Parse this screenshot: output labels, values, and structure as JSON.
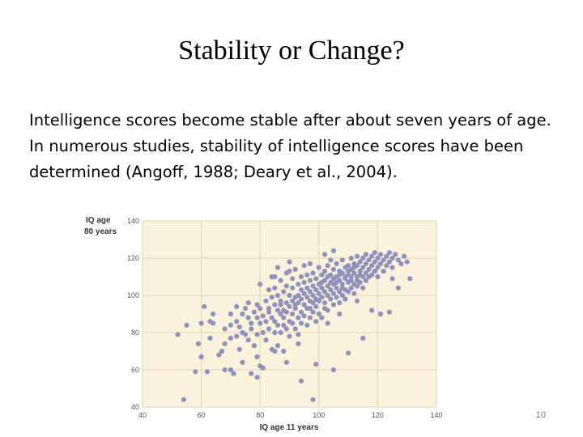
{
  "slide": {
    "title": "Stability or Change?",
    "body": "Intelligence scores become stable after about seven years of age. In numerous studies, stability of intelligence scores have been determined (Angoff, 1988; Deary et al., 2004).",
    "page_number": "10"
  },
  "colors": {
    "plot_background": "#fbf2dc",
    "grid": "#e0d3b5",
    "points": "#8f92bd",
    "axis_text": "#555555"
  },
  "chart_data": {
    "type": "scatter",
    "title": "",
    "xlabel": "IQ age 11 years",
    "ylabel_lines": [
      "IQ age",
      "80 years"
    ],
    "xlim": [
      40,
      140
    ],
    "ylim": [
      40,
      140
    ],
    "xticks": [
      40,
      60,
      80,
      100,
      120,
      140
    ],
    "yticks": [
      40,
      60,
      80,
      100,
      120,
      140
    ],
    "grid": true,
    "legend": "none",
    "points": [
      [
        52,
        79
      ],
      [
        54,
        44
      ],
      [
        55,
        84
      ],
      [
        58,
        59
      ],
      [
        59,
        74
      ],
      [
        60,
        85
      ],
      [
        60,
        67
      ],
      [
        61,
        94
      ],
      [
        62,
        59
      ],
      [
        63,
        77
      ],
      [
        63,
        86
      ],
      [
        64,
        85
      ],
      [
        64,
        90
      ],
      [
        66,
        68
      ],
      [
        67,
        70
      ],
      [
        68,
        74
      ],
      [
        68,
        82
      ],
      [
        68,
        60
      ],
      [
        70,
        77
      ],
      [
        70,
        84
      ],
      [
        70,
        90
      ],
      [
        70,
        60
      ],
      [
        71,
        58
      ],
      [
        72,
        78
      ],
      [
        72,
        86
      ],
      [
        72,
        94
      ],
      [
        73,
        83
      ],
      [
        73,
        71
      ],
      [
        74,
        90
      ],
      [
        74,
        80
      ],
      [
        74,
        64
      ],
      [
        75,
        93
      ],
      [
        76,
        88
      ],
      [
        76,
        76
      ],
      [
        76,
        96
      ],
      [
        77,
        82
      ],
      [
        77,
        85
      ],
      [
        78,
        91
      ],
      [
        78,
        73
      ],
      [
        79,
        79
      ],
      [
        79,
        88
      ],
      [
        79,
        95
      ],
      [
        79,
        67
      ],
      [
        80,
        62
      ],
      [
        80,
        85
      ],
      [
        80,
        93
      ],
      [
        80,
        106
      ],
      [
        81,
        80
      ],
      [
        81,
        89
      ],
      [
        82,
        86
      ],
      [
        82,
        97
      ],
      [
        82,
        76
      ],
      [
        83,
        103
      ],
      [
        83,
        82
      ],
      [
        83,
        91
      ],
      [
        84,
        88
      ],
      [
        84,
        99
      ],
      [
        84,
        71
      ],
      [
        84,
        110
      ],
      [
        85,
        95
      ],
      [
        85,
        80
      ],
      [
        85,
        104
      ],
      [
        85,
        86
      ],
      [
        86,
        92
      ],
      [
        86,
        84
      ],
      [
        86,
        100
      ],
      [
        86,
        115
      ],
      [
        86,
        73
      ],
      [
        87,
        90
      ],
      [
        87,
        97
      ],
      [
        87,
        80
      ],
      [
        87,
        108
      ],
      [
        87,
        95
      ],
      [
        88,
        88
      ],
      [
        88,
        102
      ],
      [
        88,
        92
      ],
      [
        88,
        70
      ],
      [
        88,
        84
      ],
      [
        89,
        96
      ],
      [
        89,
        105
      ],
      [
        89,
        82
      ],
      [
        89,
        112
      ],
      [
        89,
        91
      ],
      [
        90,
        94
      ],
      [
        90,
        100
      ],
      [
        90,
        86
      ],
      [
        90,
        118
      ],
      [
        90,
        78
      ],
      [
        91,
        97
      ],
      [
        91,
        90
      ],
      [
        91,
        104
      ],
      [
        91,
        85
      ],
      [
        91,
        109
      ],
      [
        92,
        93
      ],
      [
        92,
        99
      ],
      [
        92,
        82
      ],
      [
        92,
        114
      ],
      [
        92,
        95
      ],
      [
        93,
        100
      ],
      [
        93,
        88
      ],
      [
        93,
        106
      ],
      [
        93,
        79
      ],
      [
        93,
        96
      ],
      [
        94,
        103
      ],
      [
        94,
        91
      ],
      [
        94,
        110
      ],
      [
        94,
        85
      ],
      [
        94,
        98
      ],
      [
        95,
        95
      ],
      [
        95,
        107
      ],
      [
        95,
        89
      ],
      [
        95,
        101
      ],
      [
        95,
        116
      ],
      [
        96,
        93
      ],
      [
        96,
        99
      ],
      [
        96,
        84
      ],
      [
        96,
        111
      ],
      [
        96,
        104
      ],
      [
        97,
        97
      ],
      [
        97,
        108
      ],
      [
        97,
        88
      ],
      [
        97,
        102
      ],
      [
        97,
        93
      ],
      [
        98,
        100
      ],
      [
        98,
        105
      ],
      [
        98,
        91
      ],
      [
        98,
        112
      ],
      [
        98,
        96
      ],
      [
        99,
        103
      ],
      [
        99,
        98
      ],
      [
        99,
        86
      ],
      [
        99,
        109
      ],
      [
        99,
        94
      ],
      [
        100,
        101
      ],
      [
        100,
        106
      ],
      [
        100,
        90
      ],
      [
        100,
        115
      ],
      [
        100,
        97
      ],
      [
        101,
        104
      ],
      [
        101,
        99
      ],
      [
        101,
        111
      ],
      [
        101,
        88
      ],
      [
        101,
        107
      ],
      [
        102,
        102
      ],
      [
        102,
        96
      ],
      [
        102,
        113
      ],
      [
        102,
        93
      ],
      [
        102,
        108
      ],
      [
        103,
        105
      ],
      [
        103,
        100
      ],
      [
        103,
        116
      ],
      [
        103,
        92
      ],
      [
        103,
        110
      ],
      [
        104,
        103
      ],
      [
        104,
        107
      ],
      [
        104,
        98
      ],
      [
        104,
        119
      ],
      [
        104,
        111
      ],
      [
        105,
        106
      ],
      [
        105,
        101
      ],
      [
        105,
        114
      ],
      [
        105,
        95
      ],
      [
        105,
        109
      ],
      [
        106,
        104
      ],
      [
        106,
        110
      ],
      [
        106,
        99
      ],
      [
        106,
        117
      ],
      [
        106,
        107
      ],
      [
        107,
        108
      ],
      [
        107,
        102
      ],
      [
        107,
        113
      ],
      [
        107,
        96
      ],
      [
        107,
        111
      ],
      [
        108,
        106
      ],
      [
        108,
        112
      ],
      [
        108,
        100
      ],
      [
        108,
        119
      ],
      [
        108,
        104
      ],
      [
        109,
        109
      ],
      [
        109,
        115
      ],
      [
        109,
        103
      ],
      [
        109,
        110
      ],
      [
        109,
        98
      ],
      [
        110,
        111
      ],
      [
        110,
        107
      ],
      [
        110,
        116
      ],
      [
        110,
        102
      ],
      [
        110,
        113
      ],
      [
        111,
        108
      ],
      [
        111,
        114
      ],
      [
        111,
        104
      ],
      [
        111,
        120
      ],
      [
        111,
        110
      ],
      [
        112,
        112
      ],
      [
        112,
        106
      ],
      [
        112,
        117
      ],
      [
        112,
        101
      ],
      [
        112,
        115
      ],
      [
        113,
        110
      ],
      [
        113,
        116
      ],
      [
        113,
        105
      ],
      [
        113,
        121
      ],
      [
        113,
        108
      ],
      [
        114,
        113
      ],
      [
        114,
        118
      ],
      [
        114,
        107
      ],
      [
        114,
        111
      ],
      [
        115,
        115
      ],
      [
        115,
        110
      ],
      [
        115,
        120
      ],
      [
        115,
        104
      ],
      [
        116,
        117
      ],
      [
        116,
        112
      ],
      [
        116,
        122
      ],
      [
        116,
        108
      ],
      [
        117,
        114
      ],
      [
        117,
        119
      ],
      [
        117,
        110
      ],
      [
        118,
        116
      ],
      [
        118,
        121
      ],
      [
        118,
        111
      ],
      [
        119,
        118
      ],
      [
        119,
        113
      ],
      [
        119,
        123
      ],
      [
        120,
        115
      ],
      [
        120,
        120
      ],
      [
        120,
        110
      ],
      [
        121,
        117
      ],
      [
        121,
        122
      ],
      [
        122,
        119
      ],
      [
        122,
        113
      ],
      [
        123,
        121
      ],
      [
        123,
        116
      ],
      [
        124,
        118
      ],
      [
        124,
        123
      ],
      [
        125,
        120
      ],
      [
        125,
        115
      ],
      [
        126,
        122
      ],
      [
        127,
        119
      ],
      [
        128,
        117
      ],
      [
        129,
        121
      ],
      [
        130,
        118
      ],
      [
        118,
        92
      ],
      [
        121,
        90
      ],
      [
        124,
        91
      ],
      [
        105,
        60
      ],
      [
        98,
        44
      ],
      [
        94,
        54
      ],
      [
        99,
        63
      ],
      [
        79,
        56
      ],
      [
        85,
        70
      ],
      [
        89,
        64
      ],
      [
        75,
        79
      ],
      [
        110,
        69
      ],
      [
        115,
        77
      ],
      [
        93,
        74
      ],
      [
        83,
        93
      ],
      [
        103,
        85
      ],
      [
        107,
        90
      ],
      [
        113,
        97
      ],
      [
        127,
        104
      ],
      [
        131,
        109
      ],
      [
        85,
        110
      ],
      [
        90,
        113
      ],
      [
        97,
        117
      ],
      [
        102,
        122
      ],
      [
        105,
        124
      ],
      [
        125,
        109
      ],
      [
        77,
        58
      ],
      [
        81,
        61
      ]
    ]
  }
}
